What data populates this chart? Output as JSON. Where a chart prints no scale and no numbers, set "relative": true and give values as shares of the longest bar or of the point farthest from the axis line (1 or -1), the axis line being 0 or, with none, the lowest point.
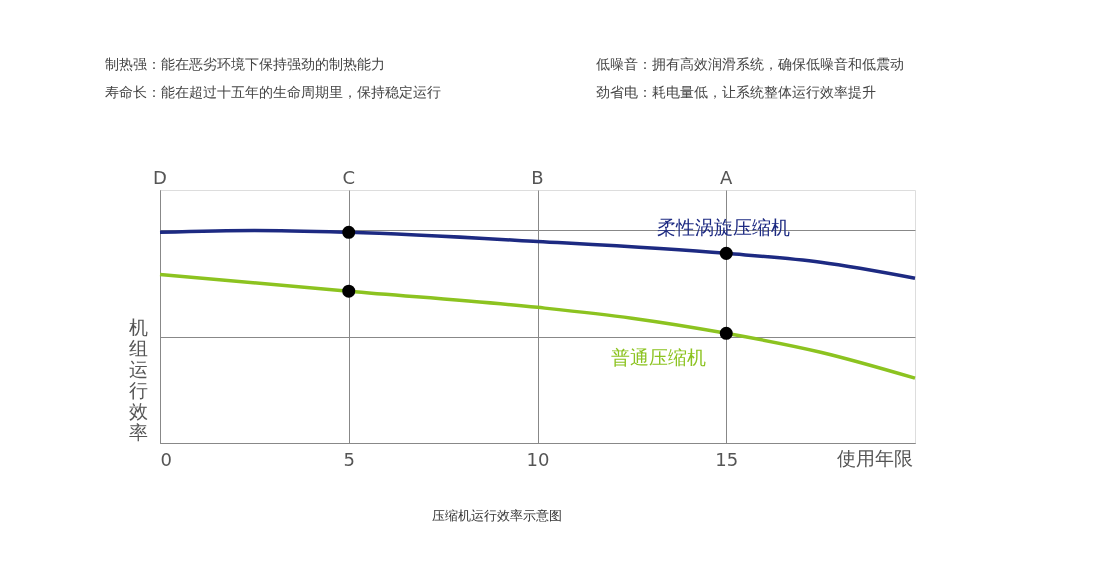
{
  "chart_data": {
    "type": "line",
    "title": "压缩机运行效率示意图",
    "xlabel": "使用年限",
    "ylabel": "机组运行效率",
    "relative": true,
    "xlim": [
      0,
      20
    ],
    "xticks": [
      0,
      5,
      10,
      15
    ],
    "grid": true,
    "line_style": "solid",
    "annotations": [
      "制热强：能在恶劣环境下保持强劲的制热能力",
      "低噪音：拥有高效润滑系统，确保低噪音和低震动",
      "寿命长：能在超过十五年的生命周期里，保持稳定运行",
      "劲省电：耗电量低，让系统整体运行效率提升",
      "D",
      "C",
      "B",
      "A"
    ],
    "series": [
      {
        "name": "柔性涡旋压缩机",
        "color": "#1d2a82",
        "x": [
          0,
          2.5,
          5,
          10,
          15,
          17.5,
          20
        ],
        "values": [
          0.991,
          1,
          0.991,
          0.948,
          0.892,
          0.85,
          0.775
        ]
      },
      {
        "name": "普通压缩机",
        "color": "#8cc320",
        "x": [
          0,
          5,
          10,
          12.5,
          15,
          17.5,
          20
        ],
        "values": [
          0.793,
          0.714,
          0.638,
          0.587,
          0.516,
          0.427,
          0.305
        ]
      },
      {
        "type": "scatter",
        "color": "#000000",
        "marker": "circle",
        "x": [
          5,
          15
        ],
        "values": [
          0.991,
          0.892
        ]
      },
      {
        "type": "scatter",
        "color": "#000000",
        "marker": "circle",
        "x": [
          5,
          15
        ],
        "values": [
          0.714,
          0.516
        ]
      }
    ]
  }
}
